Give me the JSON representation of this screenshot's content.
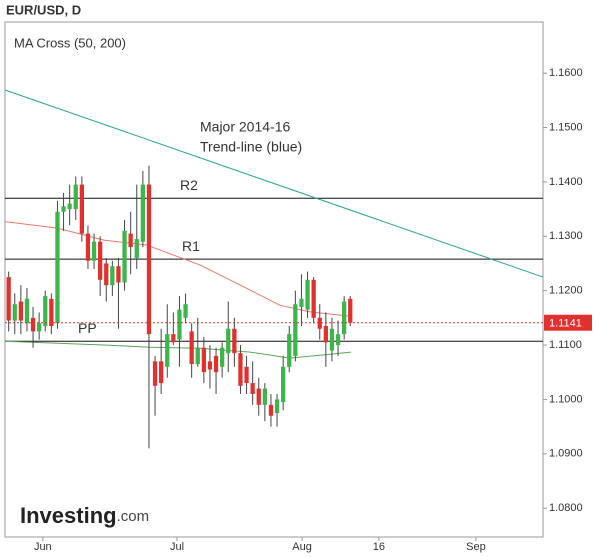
{
  "chart_data": {
    "type": "candlestick",
    "title": "EUR/USD, D",
    "subtitle": "MA Cross (50, 200)",
    "annotations": [
      "Major 2014-16",
      "Trend-line (blue)"
    ],
    "logo": [
      "Investing",
      ".com"
    ],
    "up_color": "#3cb54a",
    "down_color": "#e0312f",
    "xlim": [
      -0.6,
      87.6
    ],
    "xticks": [
      {
        "value": 5.6,
        "label": "Jun"
      },
      {
        "value": 27.6,
        "label": "Jul"
      },
      {
        "value": 48.1,
        "label": "Aug"
      },
      {
        "value": 60.7,
        "label": "16"
      },
      {
        "value": 76.6,
        "label": "Sep"
      }
    ],
    "ylim": [
      1.0747,
      1.1694
    ],
    "yticks": [
      {
        "value": 1.16,
        "label": "1.1600"
      },
      {
        "value": 1.15,
        "label": "1.1500"
      },
      {
        "value": 1.14,
        "label": "1.1400"
      },
      {
        "value": 1.13,
        "label": "1.1300"
      },
      {
        "value": 1.12,
        "label": "1.1200"
      },
      {
        "value": 1.11,
        "label": "1.1100"
      },
      {
        "value": 1.1,
        "label": "1.1000"
      },
      {
        "value": 1.09,
        "label": "1.0900"
      },
      {
        "value": 1.08,
        "label": "1.0800"
      }
    ],
    "open": [
      1.1225,
      1.1145,
      1.118,
      1.114,
      1.115,
      1.1125,
      1.1135,
      1.1185,
      1.114,
      1.1345,
      1.135,
      1.135,
      1.1395,
      1.1305,
      1.1255,
      1.129,
      1.125,
      1.121,
      1.1245,
      1.1215,
      1.1305,
      1.126,
      1.129,
      1.1395,
      1.107,
      1.107,
      1.106,
      1.112,
      1.111,
      1.115,
      1.1125,
      1.1065,
      1.1095,
      1.107,
      1.108,
      1.106,
      1.1085,
      1.113,
      1.1085,
      1.106,
      1.103,
      1.102,
      1.099,
      1.099,
      1.0975,
      1.0995,
      1.106,
      1.108,
      1.117,
      1.1165,
      1.122,
      1.115,
      1.1135,
      1.109,
      1.11,
      1.112,
      1.1185
    ],
    "high": [
      1.1235,
      1.1195,
      1.121,
      1.1205,
      1.117,
      1.116,
      1.12,
      1.1195,
      1.1365,
      1.138,
      1.1395,
      1.141,
      1.141,
      1.132,
      1.1305,
      1.13,
      1.126,
      1.1255,
      1.126,
      1.133,
      1.1345,
      1.1395,
      1.142,
      1.143,
      1.108,
      1.113,
      1.1175,
      1.116,
      1.119,
      1.1195,
      1.114,
      1.115,
      1.1115,
      1.11,
      1.1095,
      1.1105,
      1.118,
      1.115,
      1.11,
      1.108,
      1.107,
      1.104,
      1.103,
      1.101,
      1.101,
      1.108,
      1.1135,
      1.12,
      1.123,
      1.1235,
      1.1225,
      1.1175,
      1.116,
      1.115,
      1.1145,
      1.119,
      1.119
    ],
    "low": [
      1.1125,
      1.112,
      1.112,
      1.1125,
      1.1095,
      1.111,
      1.1125,
      1.112,
      1.113,
      1.131,
      1.132,
      1.133,
      1.129,
      1.124,
      1.124,
      1.119,
      1.118,
      1.119,
      1.113,
      1.12,
      1.123,
      1.124,
      1.128,
      1.091,
      1.097,
      1.101,
      1.104,
      1.11,
      1.106,
      1.114,
      1.104,
      1.106,
      1.103,
      1.102,
      1.101,
      1.104,
      1.105,
      1.106,
      1.101,
      1.101,
      1.099,
      1.097,
      1.096,
      1.095,
      1.095,
      1.098,
      1.105,
      1.107,
      1.1135,
      1.115,
      1.114,
      1.111,
      1.106,
      1.107,
      1.108,
      1.111,
      1.1135
    ],
    "close": [
      1.1145,
      1.1175,
      1.1145,
      1.1185,
      1.1125,
      1.114,
      1.119,
      1.1135,
      1.1345,
      1.1355,
      1.136,
      1.1395,
      1.1305,
      1.1255,
      1.129,
      1.122,
      1.121,
      1.1245,
      1.1215,
      1.131,
      1.128,
      1.1295,
      1.1395,
      1.112,
      1.1025,
      1.103,
      1.112,
      1.1105,
      1.1165,
      1.1175,
      1.1065,
      1.1095,
      1.105,
      1.1055,
      1.105,
      1.1095,
      1.113,
      1.1085,
      1.1025,
      1.103,
      1.101,
      1.099,
      1.102,
      1.097,
      1.1,
      1.106,
      1.112,
      1.1175,
      1.1185,
      1.122,
      1.115,
      1.113,
      1.1105,
      1.113,
      1.112,
      1.118,
      1.1141
    ],
    "series": [
      {
        "name": "MA 50",
        "color": "#e8796f",
        "x": [
          -0.6,
          8,
          15.6,
          22.6,
          31.4,
          38,
          44.5,
          49.4,
          56.1
        ],
        "values": [
          1.1327,
          1.1315,
          1.1293,
          1.1284,
          1.1247,
          1.121,
          1.1173,
          1.1161,
          1.1153
        ]
      },
      {
        "name": "MA 200",
        "color": "#5aa55a",
        "x": [
          -0.6,
          15.6,
          23.2,
          31.4,
          39.6,
          46.1,
          52.7,
          56.1
        ],
        "values": [
          1.1107,
          1.11,
          1.1096,
          1.1094,
          1.1087,
          1.1076,
          1.1083,
          1.1087
        ]
      }
    ],
    "trendline": {
      "color": "#2aa58c",
      "x": [
        -0.6,
        87.6
      ],
      "values": [
        1.1569,
        1.1225
      ]
    },
    "levels": [
      {
        "name": "R2",
        "value": 1.137
      },
      {
        "name": "R1",
        "value": 1.1258
      },
      {
        "name": "PP",
        "value": 1.1107
      }
    ],
    "last_price": 1.1141,
    "last_price_color": "#e0312f"
  }
}
